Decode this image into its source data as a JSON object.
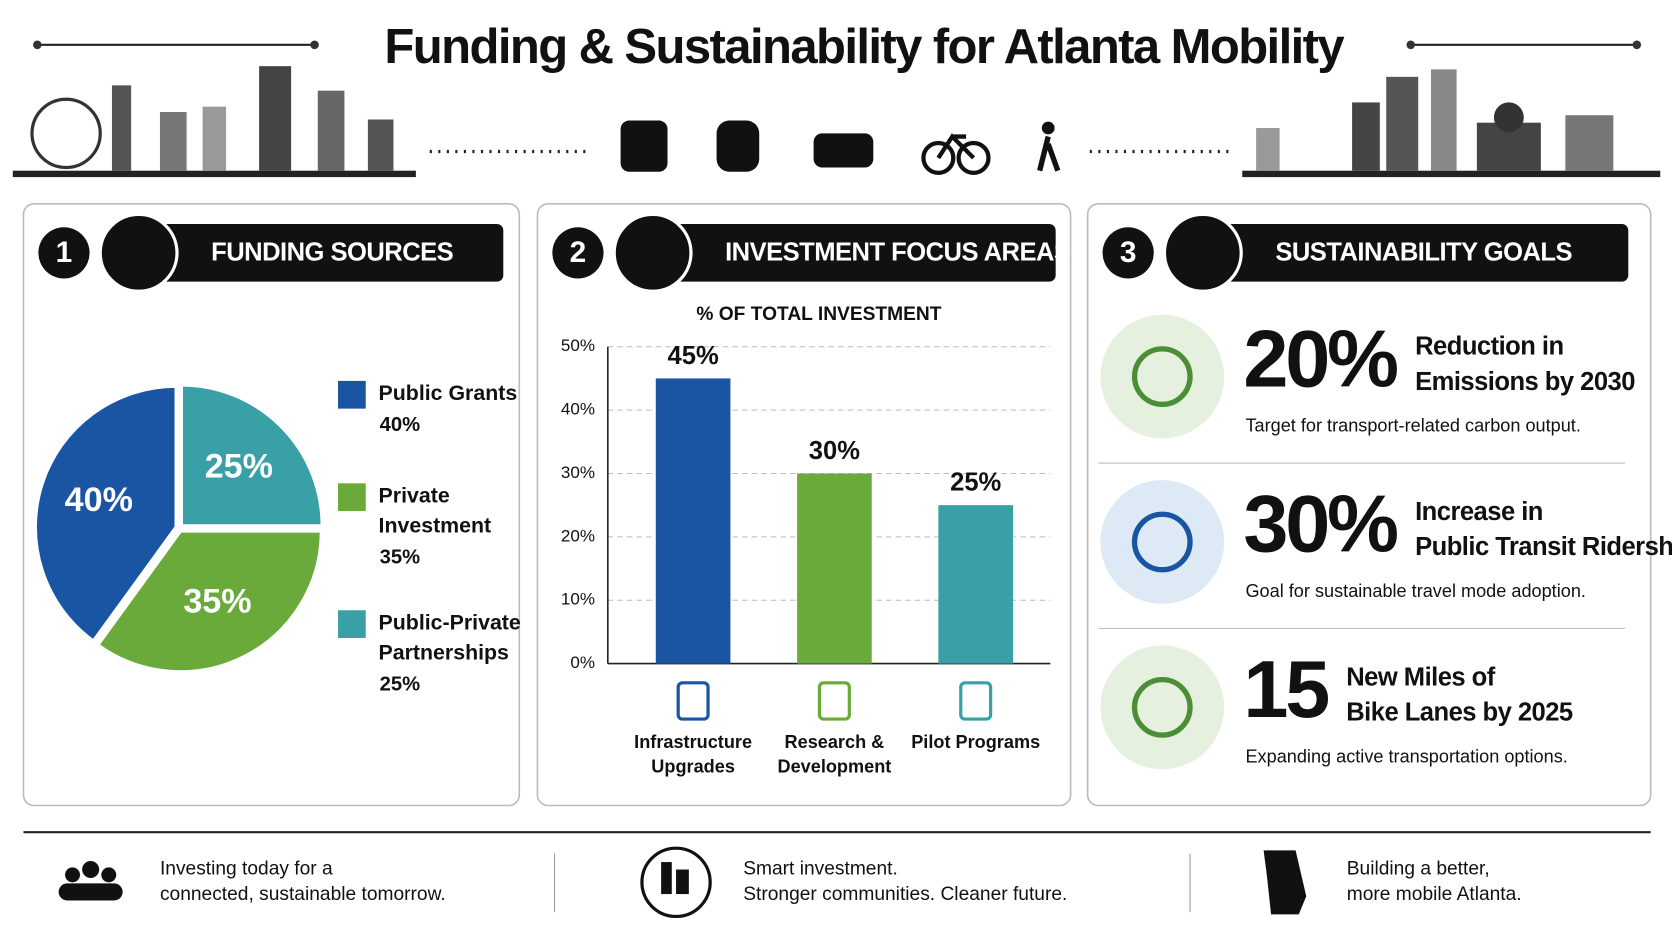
{
  "header": {
    "title": "Funding & Sustainability for Atlanta Mobility"
  },
  "panels": [
    {
      "number": "1",
      "title": "FUNDING SOURCES"
    },
    {
      "number": "2",
      "title": "INVESTMENT FOCUS AREAS"
    },
    {
      "number": "3",
      "title": "SUSTAINABILITY GOALS"
    }
  ],
  "chart_data": [
    {
      "type": "pie",
      "categories": [
        "Public Grants",
        "Private Investment",
        "Public-Private Partnerships"
      ],
      "values": [
        40,
        35,
        25
      ],
      "value_labels": [
        "40%",
        "35%",
        "25%"
      ],
      "colors": [
        "#1a55a3",
        "#6aaa3a",
        "#3aa0a8"
      ]
    },
    {
      "type": "bar",
      "title": "% OF TOTAL INVESTMENT",
      "categories": [
        "Infrastructure Upgrades",
        "Research & Development",
        "Pilot Programs"
      ],
      "values": [
        45,
        30,
        25
      ],
      "value_labels": [
        "45%",
        "30%",
        "25%"
      ],
      "colors": [
        "#1a55a3",
        "#6aaa3a",
        "#3aa0a8"
      ],
      "ylim": [
        0,
        50
      ],
      "yticks": [
        {
          "value": 0,
          "label": "0%"
        },
        {
          "value": 10,
          "label": "10%"
        },
        {
          "value": 20,
          "label": "20%"
        },
        {
          "value": 30,
          "label": "30%"
        },
        {
          "value": 40,
          "label": "40%"
        },
        {
          "value": 50,
          "label": "50%"
        }
      ],
      "grid": true
    }
  ],
  "goals": [
    {
      "figure": "20%",
      "headline": [
        "Reduction in",
        "Emissions by 2030"
      ],
      "description": "Target for transport-related carbon output."
    },
    {
      "figure": "30%",
      "headline": [
        "Increase in",
        "Public Transit Ridership"
      ],
      "description": "Goal for sustainable travel mode adoption."
    },
    {
      "figure": "15",
      "headline": [
        "New Miles of",
        "Bike Lanes by 2025"
      ],
      "description": "Expanding active transportation options."
    }
  ],
  "footer": [
    {
      "lines": [
        "Investing today for a",
        "connected, sustainable tomorrow."
      ]
    },
    {
      "lines": [
        "Smart investment.",
        "Stronger communities. Cleaner future."
      ]
    },
    {
      "lines": [
        "Building a better,",
        "more mobile Atlanta."
      ]
    }
  ]
}
